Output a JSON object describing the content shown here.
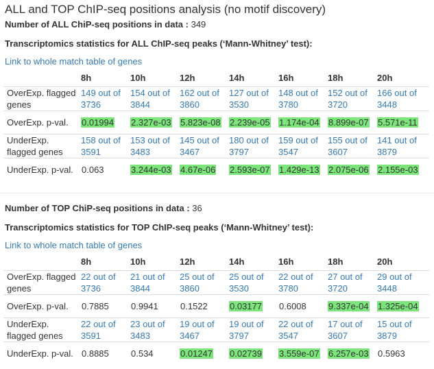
{
  "title": "ALL and TOP ChIP-seq positions analysis (no motif discovery)",
  "columns": [
    "8h",
    "10h",
    "12h",
    "14h",
    "16h",
    "18h",
    "20h"
  ],
  "highlight_color": "#7ce67c",
  "link_color": "#337ab7",
  "sections": [
    {
      "count_label": "Number of ALL ChiP-seq positions in data :",
      "count_value": "349",
      "stats_title": "Transcriptomics statistics for ALL ChIP-seq peaks (‘Mann-Whitney’ test):",
      "link_text": "Link to whole match table of genes",
      "rows": [
        {
          "label": "OverExp. flagged genes",
          "type": "link",
          "cells": [
            {
              "text": "149 out of 3736"
            },
            {
              "text": "154 out of 3844"
            },
            {
              "text": "162 out of 3860"
            },
            {
              "text": "127 out of 3530"
            },
            {
              "text": "148 out of 3780"
            },
            {
              "text": "152 out of 3720"
            },
            {
              "text": "166 out of 3448"
            }
          ]
        },
        {
          "label": "OverExp. p-val.",
          "type": "pval",
          "cells": [
            {
              "text": "0.01994",
              "hl": true
            },
            {
              "text": "2.327e-03",
              "hl": true
            },
            {
              "text": "5.823e-08",
              "hl": true
            },
            {
              "text": "2.239e-05",
              "hl": true
            },
            {
              "text": "1.174e-04",
              "hl": true
            },
            {
              "text": "8.899e-07",
              "hl": true
            },
            {
              "text": "5.571e-11",
              "hl": true
            }
          ]
        },
        {
          "label": "UnderExp. flagged genes",
          "type": "link",
          "cells": [
            {
              "text": "158 out of 3591"
            },
            {
              "text": "153 out of 3483"
            },
            {
              "text": "145 out of 3467"
            },
            {
              "text": "180 out of 3797"
            },
            {
              "text": "159 out of 3547"
            },
            {
              "text": "155 out of 3607"
            },
            {
              "text": "141 out of 3879"
            }
          ]
        },
        {
          "label": "UnderExp. p-val.",
          "type": "pval",
          "cells": [
            {
              "text": "0.063",
              "hl": false
            },
            {
              "text": "3.244e-03",
              "hl": true
            },
            {
              "text": "4.67e-06",
              "hl": true
            },
            {
              "text": "2.593e-07",
              "hl": true
            },
            {
              "text": "1.429e-13",
              "hl": true
            },
            {
              "text": "2.075e-06",
              "hl": true
            },
            {
              "text": "2.155e-03",
              "hl": true
            }
          ]
        }
      ]
    },
    {
      "count_label": "Number of TOP ChiP-seq positions in data :",
      "count_value": "36",
      "stats_title": "Transcriptomics statistics for TOP ChIP-seq peaks (‘Mann-Whitney’ test):",
      "link_text": "Link to whole match table of genes",
      "rows": [
        {
          "label": "OverExp. flagged genes",
          "type": "link",
          "cells": [
            {
              "text": "22 out of 3736"
            },
            {
              "text": "21 out of 3844"
            },
            {
              "text": "25 out of 3860"
            },
            {
              "text": "25 out of 3530"
            },
            {
              "text": "22 out of 3780"
            },
            {
              "text": "27 out of 3720"
            },
            {
              "text": "29 out of 3448"
            }
          ]
        },
        {
          "label": "OverExp. p-val.",
          "type": "pval",
          "cells": [
            {
              "text": "0.7885",
              "hl": false
            },
            {
              "text": "0.9941",
              "hl": false
            },
            {
              "text": "0.1522",
              "hl": false
            },
            {
              "text": "0.03177",
              "hl": true
            },
            {
              "text": "0.6008",
              "hl": false
            },
            {
              "text": "9.337e-04",
              "hl": true
            },
            {
              "text": "1.325e-04",
              "hl": true
            }
          ]
        },
        {
          "label": "UnderExp. flagged genes",
          "type": "link",
          "cells": [
            {
              "text": "22 out of 3591"
            },
            {
              "text": "23 out of 3483"
            },
            {
              "text": "19 out of 3467"
            },
            {
              "text": "19 out of 3797"
            },
            {
              "text": "22 out of 3547"
            },
            {
              "text": "17 out of 3607"
            },
            {
              "text": "15 out of 3879"
            }
          ]
        },
        {
          "label": "UnderExp. p-val.",
          "type": "pval",
          "cells": [
            {
              "text": "0.8885",
              "hl": false
            },
            {
              "text": "0.534",
              "hl": false
            },
            {
              "text": "0.01247",
              "hl": true
            },
            {
              "text": "0.02739",
              "hl": true
            },
            {
              "text": "3.559e-07",
              "hl": true
            },
            {
              "text": "6.257e-03",
              "hl": true
            },
            {
              "text": "0.5963",
              "hl": false
            }
          ]
        }
      ]
    }
  ]
}
